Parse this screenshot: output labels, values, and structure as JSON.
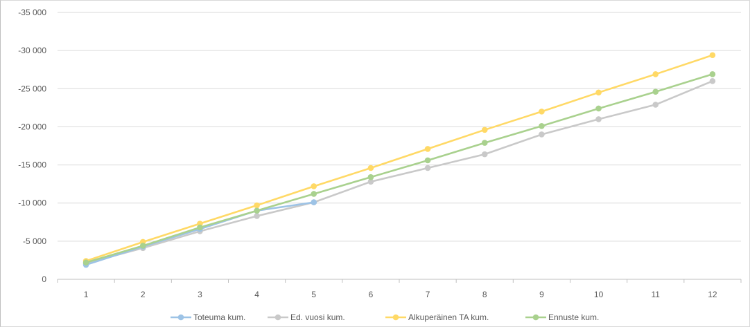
{
  "chart_data": {
    "type": "line",
    "title": "",
    "xlabel": "",
    "ylabel": "",
    "categories": [
      "1",
      "2",
      "3",
      "4",
      "5",
      "6",
      "7",
      "8",
      "9",
      "10",
      "11",
      "12"
    ],
    "y_tick_labels": [
      "0",
      "-5 000",
      "-10 000",
      "-15 000",
      "-20 000",
      "-25 000",
      "-30 000",
      "-35 000"
    ],
    "y_tick_values": [
      0,
      -5000,
      -10000,
      -15000,
      -20000,
      -25000,
      -30000,
      -35000
    ],
    "ylim": [
      0,
      -35000
    ],
    "y_axis_inverted": true,
    "grid": true,
    "legend_position": "bottom",
    "series": [
      {
        "name": "Toteuma kum.",
        "color": "#9dc3e6",
        "values": [
          -1900,
          -4300,
          -6600,
          -9000,
          -10100,
          null,
          null,
          null,
          null,
          null,
          null,
          null
        ]
      },
      {
        "name": "Ed. vuosi kum.",
        "color": "#c9c9c9",
        "values": [
          -2100,
          -4100,
          -6300,
          -8300,
          -10100,
          -12800,
          -14600,
          -16400,
          -19000,
          -21000,
          -22900,
          -26000
        ]
      },
      {
        "name": "Alkuperäinen TA kum.",
        "color": "#ffd966",
        "values": [
          -2400,
          -4900,
          -7300,
          -9700,
          -12200,
          -14600,
          -17100,
          -19600,
          -22000,
          -24500,
          -26900,
          -29400
        ]
      },
      {
        "name": "Ennuste kum.",
        "color": "#a9d18e",
        "values": [
          -2200,
          -4400,
          -6800,
          -9000,
          -11200,
          -13400,
          -15600,
          -17900,
          -20100,
          -22400,
          -24600,
          -26900
        ]
      }
    ]
  },
  "colors": {
    "grid": "#d9d9d9",
    "axis": "#bfbfbf",
    "text": "#595959"
  }
}
